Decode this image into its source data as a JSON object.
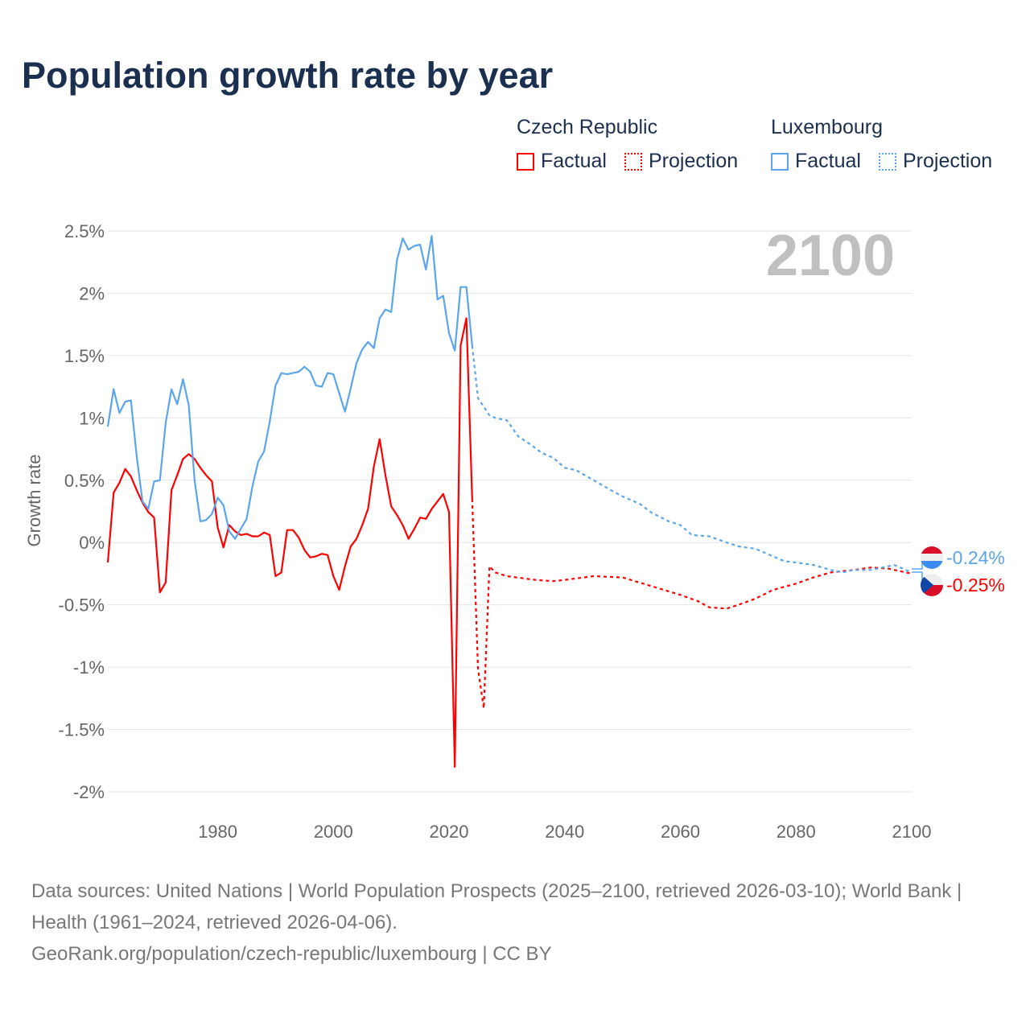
{
  "title": "Population growth rate by year",
  "legend": {
    "groups": [
      {
        "name": "Czech Republic",
        "factual": "Factual",
        "projection": "Projection",
        "color": "#ff0000"
      },
      {
        "name": "Luxembourg",
        "factual": "Factual",
        "projection": "Projection",
        "color": "#5aa5ec"
      }
    ]
  },
  "year_label": "2100",
  "end_labels": {
    "luxembourg": "-0.24%",
    "czech": "-0.25%"
  },
  "footer": {
    "line1": "Data sources: United Nations | World Population Prospects (2025–2100, retrieved 2026-03-10); World Bank | Health (1961–2024, retrieved 2026-04-06).",
    "line2": "GeoRank.org/population/czech-republic/luxembourg | CC BY"
  },
  "chart_data": {
    "type": "line",
    "title": "Population growth rate by year",
    "xlabel": "",
    "ylabel": "Growth rate",
    "xlim": [
      1961,
      2100
    ],
    "ylim": [
      -2.0,
      2.5
    ],
    "grid": true,
    "legend_position": "top-right",
    "x_ticks": [
      "1980",
      "2000",
      "2020",
      "2040",
      "2060",
      "2080",
      "2100"
    ],
    "y_ticks": [
      "2.5%",
      "2%",
      "1.5%",
      "1%",
      "0.5%",
      "0%",
      "-0.5%",
      "-1%",
      "-1.5%",
      "-2%"
    ],
    "y_tick_values": [
      2.5,
      2,
      1.5,
      1,
      0.5,
      0,
      -0.5,
      -1,
      -1.5,
      -2
    ],
    "series": [
      {
        "name": "Czech Republic - Factual",
        "color": "#ff0000",
        "dashed": false,
        "start_year": 1961,
        "values": [
          -0.16,
          0.4,
          0.48,
          0.59,
          0.53,
          0.42,
          0.32,
          0.245,
          0.2,
          -0.4,
          -0.32,
          0.42,
          0.54,
          0.67,
          0.71,
          0.67,
          0.6,
          0.54,
          0.49,
          0.12,
          -0.04,
          0.14,
          0.09,
          0.06,
          0.07,
          0.05,
          0.05,
          0.08,
          0.06,
          -0.27,
          -0.24,
          0.1,
          0.1,
          0.04,
          -0.06,
          -0.12,
          -0.11,
          -0.09,
          -0.1,
          -0.27,
          -0.38,
          -0.19,
          -0.03,
          0.03,
          0.14,
          0.27,
          0.61,
          0.83,
          0.54,
          0.29,
          0.22,
          0.14,
          0.03,
          0.11,
          0.2,
          0.19,
          0.27,
          0.33,
          0.39,
          0.245,
          -1.8,
          1.58,
          1.8,
          0.35
        ]
      },
      {
        "name": "Czech Republic - Projection",
        "color": "#ff0000",
        "dashed": true,
        "x": [
          2024,
          2025,
          2026,
          2027,
          2028,
          2030,
          2035,
          2038,
          2040,
          2045,
          2050,
          2055,
          2060,
          2063,
          2065,
          2068,
          2070,
          2073,
          2076,
          2080,
          2083,
          2086,
          2090,
          2093,
          2096,
          2098,
          2100
        ],
        "values": [
          0.35,
          -1.01,
          -1.33,
          -0.19,
          -0.24,
          -0.27,
          -0.3,
          -0.31,
          -0.3,
          -0.27,
          -0.28,
          -0.35,
          -0.42,
          -0.47,
          -0.52,
          -0.53,
          -0.5,
          -0.45,
          -0.38,
          -0.33,
          -0.28,
          -0.24,
          -0.22,
          -0.2,
          -0.21,
          -0.23,
          -0.25
        ]
      },
      {
        "name": "Luxembourg - Factual",
        "color": "#5aa5ec",
        "dashed": false,
        "start_year": 1961,
        "values": [
          0.93,
          1.23,
          1.04,
          1.13,
          1.14,
          0.69,
          0.33,
          0.27,
          0.49,
          0.5,
          0.96,
          1.23,
          1.11,
          1.31,
          1.1,
          0.5,
          0.17,
          0.18,
          0.23,
          0.36,
          0.3,
          0.09,
          0.03,
          0.11,
          0.19,
          0.45,
          0.65,
          0.73,
          0.97,
          1.26,
          1.36,
          1.35,
          1.36,
          1.37,
          1.41,
          1.37,
          1.26,
          1.25,
          1.36,
          1.35,
          1.2,
          1.05,
          1.24,
          1.44,
          1.55,
          1.61,
          1.56,
          1.8,
          1.87,
          1.85,
          2.27,
          2.44,
          2.35,
          2.38,
          2.39,
          2.19,
          2.46,
          1.95,
          1.98,
          1.68,
          1.54,
          2.05,
          2.05,
          1.58
        ]
      },
      {
        "name": "Luxembourg - Projection",
        "color": "#5aa5ec",
        "dashed": true,
        "x": [
          2024,
          2025,
          2026,
          2027,
          2028,
          2030,
          2032,
          2034,
          2036,
          2038,
          2040,
          2042,
          2045,
          2048,
          2050,
          2053,
          2055,
          2058,
          2060,
          2062,
          2065,
          2068,
          2070,
          2073,
          2076,
          2078,
          2080,
          2083,
          2086,
          2088,
          2090,
          2093,
          2095,
          2097,
          2100
        ],
        "values": [
          1.58,
          1.16,
          1.09,
          1.02,
          1.0,
          0.98,
          0.85,
          0.79,
          0.72,
          0.68,
          0.6,
          0.58,
          0.5,
          0.42,
          0.37,
          0.31,
          0.24,
          0.17,
          0.14,
          0.06,
          0.05,
          0.0,
          -0.03,
          -0.05,
          -0.11,
          -0.15,
          -0.16,
          -0.18,
          -0.22,
          -0.24,
          -0.22,
          -0.22,
          -0.2,
          -0.18,
          -0.24
        ]
      }
    ]
  }
}
